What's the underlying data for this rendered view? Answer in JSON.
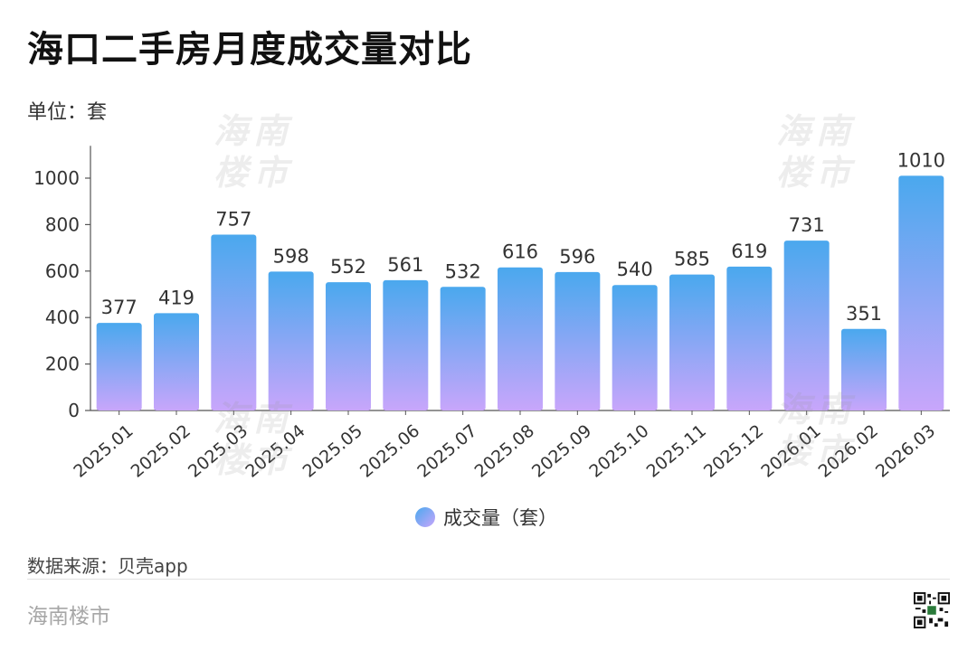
{
  "header": {
    "title": "海口二手房月度成交量对比",
    "unit_label": "单位：套"
  },
  "chart_data": {
    "type": "bar",
    "categories": [
      "2025.01",
      "2025.02",
      "2025.03",
      "2025.04",
      "2025.05",
      "2025.06",
      "2025.07",
      "2025.08",
      "2025.09",
      "2025.10",
      "2025.11",
      "2025.12",
      "2026.01",
      "2026.02",
      "2026.03"
    ],
    "series": [
      {
        "name": "成交量（套）",
        "values": [
          377,
          419,
          757,
          598,
          552,
          561,
          532,
          616,
          596,
          540,
          585,
          619,
          731,
          351,
          1010
        ]
      }
    ],
    "yticks": [
      0,
      200,
      400,
      600,
      800,
      1000
    ],
    "ylim": [
      0,
      1100
    ],
    "legend_position": "bottom",
    "grid": false,
    "colors": {
      "bar_top": "#4aa8ee",
      "bar_bottom": "#c8a6fb"
    }
  },
  "footer": {
    "source": "数据来源：贝壳app",
    "brand": "海南楼市"
  },
  "watermarks": [
    "海南\n楼市",
    "海南\n楼市",
    "海南\n楼市",
    "海南\n楼市"
  ]
}
